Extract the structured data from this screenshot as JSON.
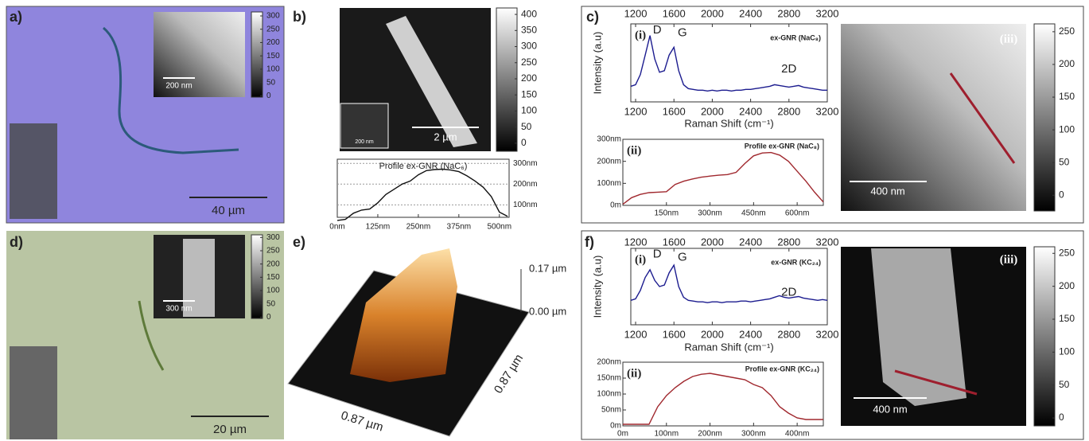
{
  "panels": {
    "labels": [
      "a)",
      "b)",
      "c)",
      "d)",
      "e)",
      "f)"
    ],
    "scale_bars": [
      "40 µm",
      "200 nm",
      "2 µm",
      "200 nm",
      "400 nm",
      "20 µm",
      "300 nm",
      "400 nm"
    ],
    "roman": [
      "(iii)",
      "(iii)"
    ]
  },
  "surface_3d": {
    "z_labels": [
      "0.17 µm",
      "0.00 µm"
    ],
    "x_label": "0.87 µm",
    "y_label": "0.87 µm"
  },
  "colorbars": [
    {
      "lim": [
        -5,
        315
      ],
      "ticks": [
        300,
        250,
        200,
        150,
        100,
        50,
        0
      ]
    },
    {
      "lim": [
        -25,
        420
      ],
      "ticks": [
        400,
        350,
        300,
        250,
        200,
        150,
        100,
        50,
        0
      ]
    },
    {
      "lim": [
        -24,
        262
      ],
      "ticks": [
        250,
        200,
        150,
        100,
        50,
        0
      ]
    },
    {
      "lim": [
        -5,
        310
      ],
      "ticks": [
        300,
        250,
        200,
        150,
        100,
        50,
        0
      ]
    },
    {
      "lim": [
        -12,
        260
      ],
      "ticks": [
        250,
        200,
        150,
        100,
        50,
        0
      ]
    }
  ],
  "chart_data": [
    {
      "type": "line",
      "title": "Profile ex-GNR (NaC₆)",
      "color": "#111111",
      "grid": true,
      "x": [
        0,
        25,
        50,
        75,
        100,
        125,
        150,
        175,
        200,
        225,
        250,
        275,
        300,
        325,
        350,
        375,
        400,
        425,
        450,
        475,
        500,
        525
      ],
      "values": [
        25,
        30,
        60,
        75,
        80,
        110,
        150,
        175,
        200,
        215,
        245,
        265,
        270,
        272,
        268,
        260,
        240,
        215,
        185,
        140,
        65,
        45
      ],
      "xlim": [
        0,
        530
      ],
      "ylim": [
        40,
        320
      ],
      "xticks": [
        {
          "value": 0,
          "label": "0nm"
        },
        {
          "value": 125,
          "label": "125nm"
        },
        {
          "value": 250,
          "label": "250nm"
        },
        {
          "value": 375,
          "label": "375nm"
        },
        {
          "value": 500,
          "label": "500nm"
        }
      ],
      "yticks": [
        {
          "value": 100,
          "label": "100nm"
        },
        {
          "value": 200,
          "label": "200nm"
        },
        {
          "value": 300,
          "label": "300nm"
        }
      ]
    },
    {
      "type": "line",
      "title": "ex-GNR (NaC₈)",
      "panel_label": "(i)",
      "annotations": [
        "D",
        "G",
        "2D"
      ],
      "color": "#1c1c8f",
      "x_label": "Raman Shift (cm⁻¹)",
      "y_label": "Intensity (a.u)",
      "x": [
        1150,
        1200,
        1250,
        1300,
        1350,
        1400,
        1450,
        1500,
        1550,
        1600,
        1650,
        1700,
        1750,
        1800,
        1850,
        1900,
        1950,
        2000,
        2050,
        2100,
        2150,
        2200,
        2250,
        2300,
        2350,
        2400,
        2450,
        2500,
        2550,
        2600,
        2650,
        2700,
        2750,
        2800,
        2850,
        2900,
        2950,
        3000,
        3050,
        3100,
        3150,
        3200
      ],
      "values": [
        0.2,
        0.22,
        0.35,
        0.6,
        0.85,
        0.55,
        0.38,
        0.4,
        0.6,
        0.7,
        0.4,
        0.22,
        0.17,
        0.16,
        0.15,
        0.15,
        0.14,
        0.15,
        0.14,
        0.15,
        0.15,
        0.14,
        0.15,
        0.15,
        0.16,
        0.16,
        0.17,
        0.18,
        0.19,
        0.2,
        0.22,
        0.21,
        0.2,
        0.19,
        0.2,
        0.21,
        0.19,
        0.18,
        0.17,
        0.16,
        0.15,
        0.15
      ],
      "xlim": [
        1150,
        3200
      ],
      "ylim": [
        0,
        1
      ],
      "xticks": [
        1200,
        1600,
        2000,
        2400,
        2800,
        3200
      ]
    },
    {
      "type": "line",
      "title": "Profile ex-GNR (NaC₈)",
      "panel_label": "(ii)",
      "color": "#a0282e",
      "x": [
        0,
        30,
        60,
        90,
        120,
        150,
        180,
        210,
        240,
        270,
        300,
        330,
        360,
        390,
        420,
        450,
        480,
        510,
        540,
        570,
        600,
        630,
        660,
        690
      ],
      "values": [
        5,
        35,
        50,
        58,
        60,
        62,
        95,
        110,
        120,
        128,
        133,
        137,
        140,
        150,
        190,
        225,
        238,
        240,
        228,
        200,
        155,
        110,
        60,
        15
      ],
      "xlim": [
        0,
        690
      ],
      "ylim": [
        0,
        300
      ],
      "xticks": [
        {
          "value": 150,
          "label": "150nm"
        },
        {
          "value": 300,
          "label": "300nm"
        },
        {
          "value": 450,
          "label": "450nm"
        },
        {
          "value": 600,
          "label": "600nm"
        }
      ],
      "yticks": [
        {
          "value": 0,
          "label": "0m"
        },
        {
          "value": 100,
          "label": "100nm"
        },
        {
          "value": 200,
          "label": "200nm"
        },
        {
          "value": 300,
          "label": "300nm"
        }
      ]
    },
    {
      "type": "line",
      "title": "ex-GNR (KC₂₄)",
      "panel_label": "(i)",
      "annotations": [
        "D",
        "G",
        "2D"
      ],
      "color": "#1c1c8f",
      "x_label": "Raman Shift (cm⁻¹)",
      "y_label": "Intensity (a.u)",
      "x": [
        1150,
        1200,
        1250,
        1300,
        1350,
        1400,
        1450,
        1500,
        1550,
        1600,
        1650,
        1700,
        1750,
        1800,
        1850,
        1900,
        1950,
        2000,
        2050,
        2100,
        2150,
        2200,
        2250,
        2300,
        2350,
        2400,
        2450,
        2500,
        2550,
        2600,
        2650,
        2700,
        2750,
        2800,
        2850,
        2900,
        2950,
        3000,
        3050,
        3100,
        3150,
        3200
      ],
      "values": [
        0.32,
        0.34,
        0.45,
        0.62,
        0.72,
        0.58,
        0.5,
        0.52,
        0.68,
        0.78,
        0.5,
        0.36,
        0.32,
        0.31,
        0.3,
        0.3,
        0.29,
        0.3,
        0.3,
        0.29,
        0.3,
        0.3,
        0.3,
        0.31,
        0.31,
        0.3,
        0.31,
        0.32,
        0.33,
        0.34,
        0.36,
        0.38,
        0.36,
        0.35,
        0.36,
        0.37,
        0.35,
        0.34,
        0.33,
        0.32,
        0.33,
        0.32
      ],
      "xlim": [
        1150,
        3200
      ],
      "ylim": [
        0,
        1
      ],
      "xticks": [
        1200,
        1600,
        2000,
        2400,
        2800,
        3200
      ]
    },
    {
      "type": "line",
      "title": "Profile ex-GNR (KC₂₄)",
      "panel_label": "(ii)",
      "color": "#a0282e",
      "x": [
        0,
        20,
        40,
        60,
        80,
        100,
        120,
        140,
        160,
        180,
        200,
        220,
        240,
        260,
        280,
        300,
        320,
        340,
        360,
        380,
        400,
        420,
        440,
        460
      ],
      "values": [
        5,
        5,
        5,
        5,
        60,
        95,
        120,
        140,
        155,
        162,
        165,
        160,
        155,
        150,
        145,
        130,
        120,
        95,
        60,
        40,
        25,
        20,
        20,
        20
      ],
      "xlim": [
        0,
        460
      ],
      "ylim": [
        0,
        200
      ],
      "xticks": [
        {
          "value": 0,
          "label": "0m"
        },
        {
          "value": 100,
          "label": "100nm"
        },
        {
          "value": 200,
          "label": "200nm"
        },
        {
          "value": 300,
          "label": "300nm"
        },
        {
          "value": 400,
          "label": "400nm"
        }
      ],
      "yticks": [
        {
          "value": 0,
          "label": "0m"
        },
        {
          "value": 50,
          "label": "50nm"
        },
        {
          "value": 100,
          "label": "100nm"
        },
        {
          "value": 150,
          "label": "150nm"
        },
        {
          "value": 200,
          "label": "200nm"
        }
      ]
    }
  ]
}
